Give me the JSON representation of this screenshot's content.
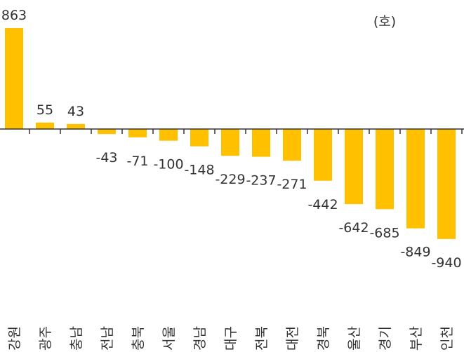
{
  "chart_data": {
    "type": "bar",
    "title": "",
    "unit": "(호)",
    "xlabel": "",
    "ylabel": "",
    "categories": [
      "강원",
      "광주",
      "충남",
      "전남",
      "충북",
      "서울",
      "경남",
      "대구",
      "전북",
      "대전",
      "경북",
      "울산",
      "경기",
      "부산",
      "인천"
    ],
    "values": [
      863,
      55,
      43,
      -43,
      -71,
      -100,
      -148,
      -229,
      -237,
      -271,
      -442,
      -642,
      -685,
      -849,
      -940
    ],
    "ylim": [
      -940,
      863
    ],
    "grid": false,
    "bar_color": "#FFC000"
  }
}
